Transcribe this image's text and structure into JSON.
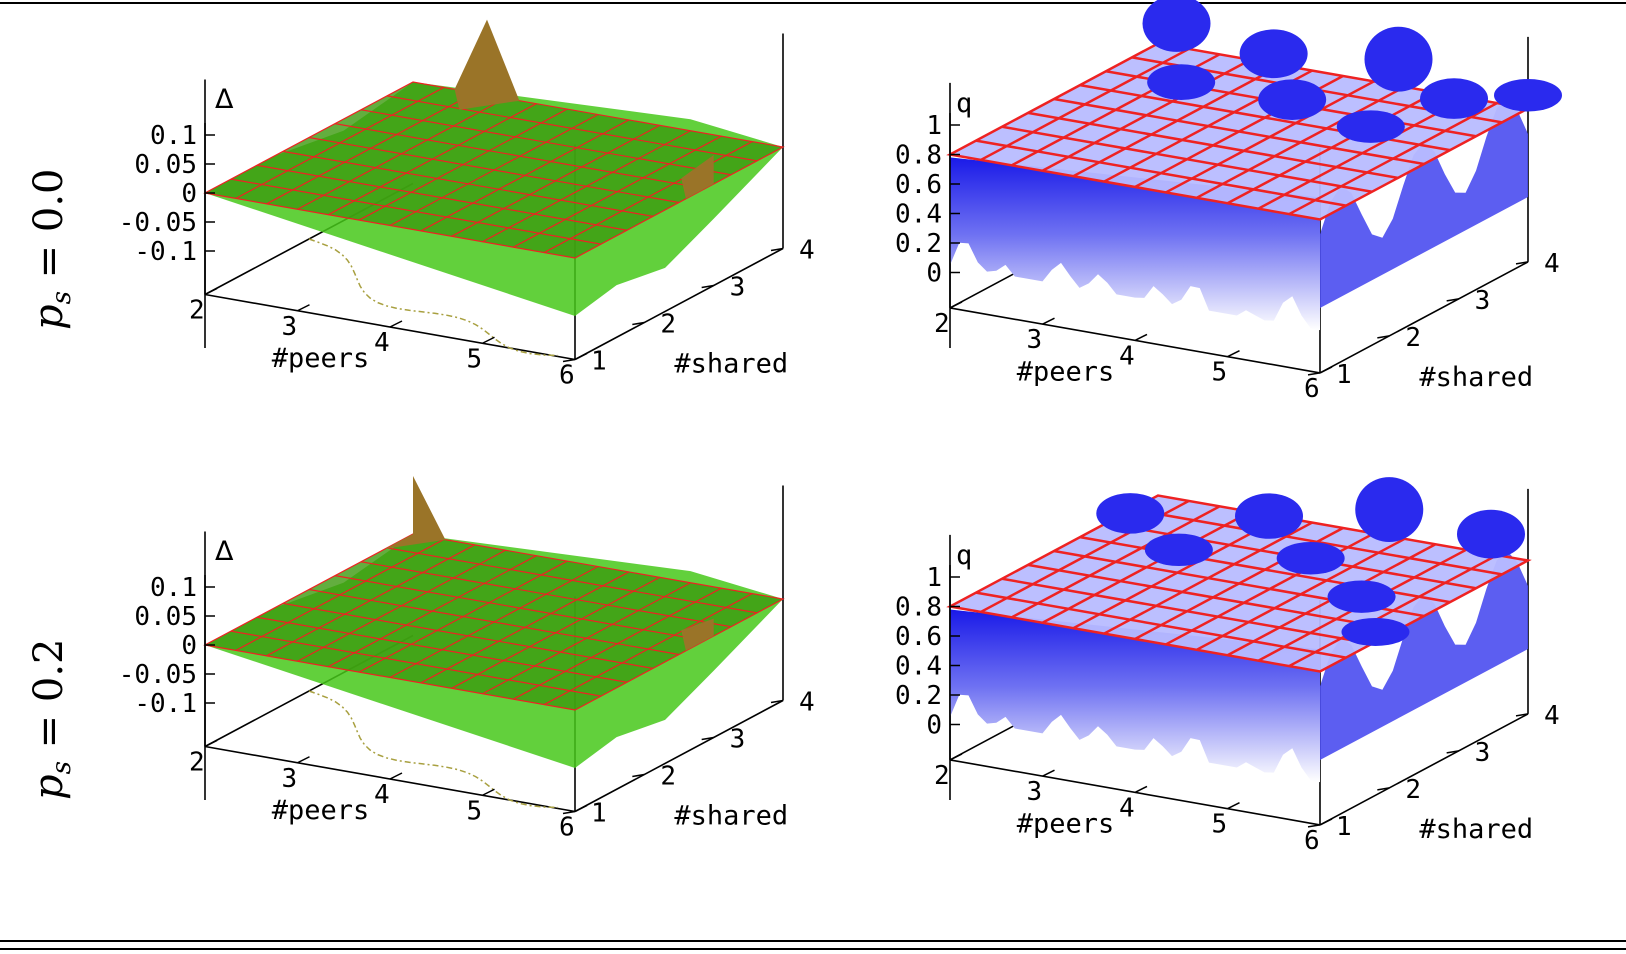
{
  "row_labels": [
    {
      "symbol": "p",
      "subscript": "s",
      "rest": " = 0.0"
    },
    {
      "symbol": "p",
      "subscript": "s",
      "rest": " = 0.2"
    }
  ],
  "colors": {
    "delta_plane": "#3c9a0f",
    "delta_surface": "#46c81a",
    "delta_spike": "#9a7428",
    "grid_red": "#ee2222",
    "q_plane": "#b8bcff",
    "q_surface": "#2a2aee",
    "contour": "#a8a040"
  },
  "chart_data": [
    {
      "id": "delta-p0",
      "type": "surface3d",
      "zlabel": "Δ",
      "xlabel": "#peers",
      "ylabel": "#shared",
      "xticks": [
        "2",
        "3",
        "4",
        "5",
        "6"
      ],
      "yticks": [
        "1",
        "2",
        "3",
        "4"
      ],
      "zticks": [
        "0.1",
        "0.05",
        "0",
        "-0.05",
        "-0.1"
      ],
      "xlim": [
        2,
        6
      ],
      "ylim": [
        1,
        4
      ],
      "zlim": [
        -0.1,
        0.1
      ],
      "reference_plane_z": 0,
      "spikes": [
        {
          "x": 2.8,
          "y": 4,
          "z": 0.13
        },
        {
          "x": 6,
          "y": 3,
          "z": 0.05
        }
      ]
    },
    {
      "id": "q-p0",
      "type": "surface3d",
      "zlabel": "q",
      "xlabel": "#peers",
      "ylabel": "#shared",
      "xticks": [
        "2",
        "3",
        "4",
        "5",
        "6"
      ],
      "yticks": [
        "1",
        "2",
        "3",
        "4"
      ],
      "zticks": [
        "1",
        "0.8",
        "0.6",
        "0.4",
        "0.2",
        "0"
      ],
      "xlim": [
        2,
        6
      ],
      "ylim": [
        1,
        4
      ],
      "zlim": [
        0,
        1
      ],
      "reference_plane_z": 0.8
    },
    {
      "id": "delta-p2",
      "type": "surface3d",
      "zlabel": "Δ",
      "xlabel": "#peers",
      "ylabel": "#shared",
      "xticks": [
        "2",
        "3",
        "4",
        "5",
        "6"
      ],
      "yticks": [
        "1",
        "2",
        "3",
        "4"
      ],
      "zticks": [
        "0.1",
        "0.05",
        "0",
        "-0.05",
        "-0.1"
      ],
      "xlim": [
        2,
        6
      ],
      "ylim": [
        1,
        4
      ],
      "zlim": [
        -0.1,
        0.1
      ],
      "reference_plane_z": 0,
      "spikes": [
        {
          "x": 2,
          "y": 4,
          "z": 0.1
        },
        {
          "x": 6,
          "y": 3,
          "z": 0.03
        }
      ]
    },
    {
      "id": "q-p2",
      "type": "surface3d",
      "zlabel": "q",
      "xlabel": "#peers",
      "ylabel": "#shared",
      "xticks": [
        "2",
        "3",
        "4",
        "5",
        "6"
      ],
      "yticks": [
        "1",
        "2",
        "3",
        "4"
      ],
      "zticks": [
        "1",
        "0.8",
        "0.6",
        "0.4",
        "0.2",
        "0"
      ],
      "xlim": [
        2,
        6
      ],
      "ylim": [
        1,
        4
      ],
      "zlim": [
        0,
        1
      ],
      "reference_plane_z": 0.8
    }
  ]
}
